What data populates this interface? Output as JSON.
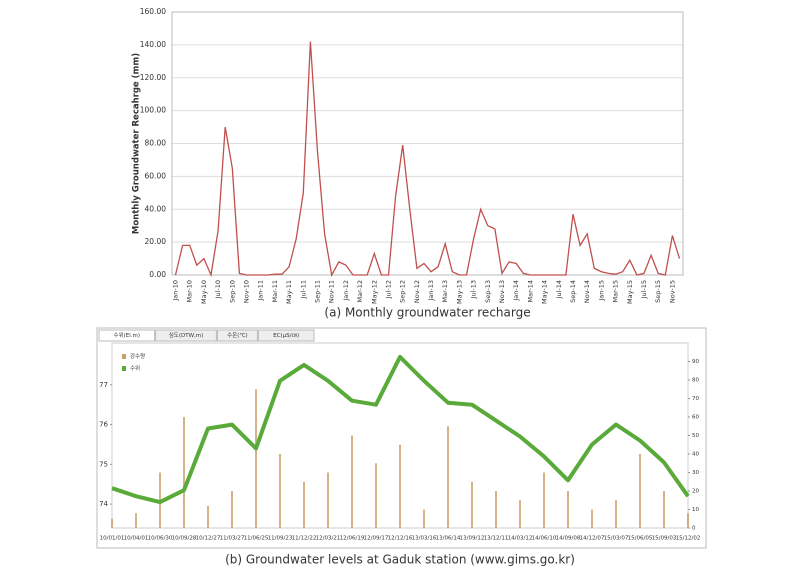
{
  "chart_data": [
    {
      "type": "line",
      "y_label": "Monthly Groundwater Recahrge (mm)",
      "caption": "(a) Monthly groundwater recharge",
      "categories": [
        "Jan-10",
        null,
        "Mar-10",
        null,
        "May-10",
        null,
        "Jul-10",
        null,
        "Sep-10",
        null,
        "Nov-10",
        null,
        "Jan-11",
        null,
        "Mar-11",
        null,
        "May-11",
        null,
        "Jul-11",
        null,
        "Sep-11",
        null,
        "Nov-11",
        null,
        "Jan-12",
        null,
        "Mar-12",
        null,
        "May-12",
        null,
        "Jul-12",
        null,
        "Sep-12",
        null,
        "Nov-12",
        null,
        "Jan-13",
        null,
        "Mar-13",
        null,
        "May-13",
        null,
        "Jul-13",
        null,
        "Sep-13",
        null,
        "Nov-13",
        null,
        "Jan-14",
        null,
        "Mar-14",
        null,
        "May-14",
        null,
        "Jul-14",
        null,
        "Sep-14",
        null,
        "Nov-14",
        null,
        "Jan-15",
        null,
        "Mar-15",
        null,
        "May-15",
        null,
        "Jul-15",
        null,
        "Sep-15",
        null,
        "Nov-15",
        null
      ],
      "series": [
        {
          "name": "Monthly groundwater recharge",
          "color": "#c0504d",
          "values": [
            0,
            18,
            18,
            6,
            10,
            0,
            27,
            90,
            65,
            1,
            0,
            0,
            0,
            0,
            0.5,
            0.5,
            5,
            22,
            50,
            142,
            75,
            25,
            0,
            8,
            6,
            0,
            0,
            0,
            13,
            0,
            0,
            48,
            79,
            40,
            4,
            7,
            2,
            5,
            19,
            2,
            0,
            0,
            22,
            40,
            30,
            28,
            1,
            8,
            7,
            1,
            0,
            0,
            0,
            0,
            0,
            0,
            37,
            18,
            25,
            4,
            2,
            1,
            0.5,
            2,
            9,
            0,
            1,
            12,
            1,
            0,
            24,
            10
          ]
        }
      ],
      "ylim": [
        0,
        160
      ],
      "yticks": [
        {
          "value": 0,
          "label": "0.00"
        },
        {
          "value": 20,
          "label": "20.00"
        },
        {
          "value": 40,
          "label": "40.00"
        },
        {
          "value": 60,
          "label": "60.00"
        },
        {
          "value": 80,
          "label": "80.00"
        },
        {
          "value": 100,
          "label": "100.00"
        },
        {
          "value": 120,
          "label": "120.00"
        },
        {
          "value": 140,
          "label": "140.00"
        },
        {
          "value": 160,
          "label": "160.00"
        }
      ],
      "grid": true
    },
    {
      "type": "bar-line",
      "caption": "(b) Groundwater levels at Gaduk station (www.gims.go.kr)",
      "tabs": [
        "수위(El.m)",
        "심도(DTW,m)",
        "수온(℃)",
        "EC(μS/㎝)"
      ],
      "x": [
        "10/01/01",
        "10/04/01",
        "10/06/30",
        "10/09/28",
        "10/12/27",
        "11/03/27",
        "11/06/25",
        "11/09/23",
        "11/12/22",
        "12/03/21",
        "12/06/19",
        "12/09/17",
        "12/12/16",
        "13/03/16",
        "13/06/14",
        "13/09/12",
        "13/12/11",
        "14/03/12",
        "14/06/10",
        "14/09/08",
        "14/12/07",
        "15/03/07",
        "15/06/05",
        "15/09/03",
        "15/12/02"
      ],
      "series": [
        {
          "name": "강수량",
          "color": "#c9a06a",
          "axis": "y2",
          "values": [
            5,
            8,
            30,
            60,
            12,
            20,
            75,
            40,
            25,
            30,
            50,
            35,
            45,
            10,
            55,
            25,
            20,
            15,
            30,
            20,
            10,
            15,
            40,
            20,
            8
          ]
        },
        {
          "name": "수위",
          "color": "#5aaa3a",
          "values": [
            74.4,
            74.2,
            74.05,
            74.35,
            75.9,
            76.0,
            75.4,
            77.1,
            77.5,
            77.1,
            76.6,
            76.5,
            77.7,
            77.1,
            76.55,
            76.5,
            76.1,
            75.7,
            75.2,
            74.6,
            75.5,
            76.0,
            75.6,
            75.05,
            74.2
          ]
        }
      ],
      "ylim": [
        73.4,
        78.05
      ],
      "yticks": [
        74,
        75,
        76,
        77
      ],
      "y2lim": [
        0,
        100
      ],
      "y2ticks": [
        0,
        10,
        20,
        30,
        40,
        50,
        60,
        70,
        80,
        90
      ]
    }
  ]
}
